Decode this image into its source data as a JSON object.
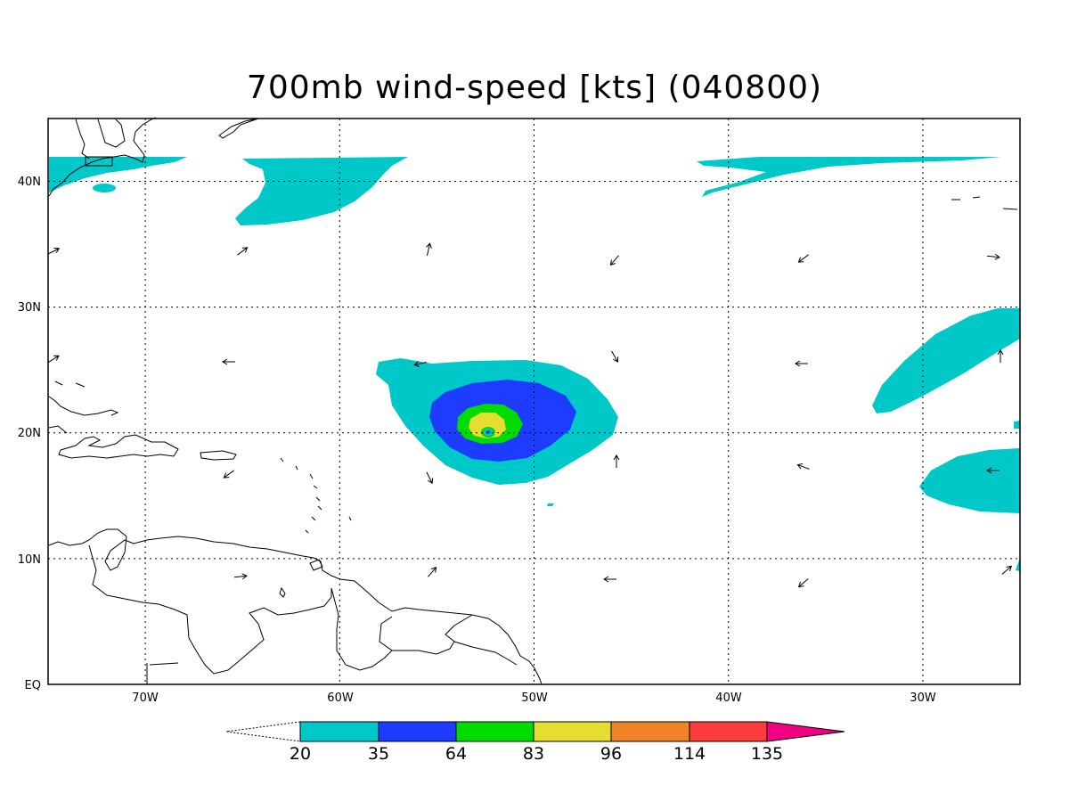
{
  "title": "700mb wind-speed [kts] (040800)",
  "map": {
    "lon_labels": [
      "70W",
      "60W",
      "50W",
      "40W",
      "30W"
    ],
    "lat_labels": [
      "40N",
      "30N",
      "20N",
      "10N",
      "EQ"
    ]
  },
  "colorbar": {
    "levels": [
      "20",
      "35",
      "64",
      "83",
      "96",
      "114",
      "135"
    ],
    "colors": [
      "#00c8c8",
      "#1e3cff",
      "#00dc00",
      "#e6dc32",
      "#f08228",
      "#fa3c3c",
      "#f00082"
    ]
  },
  "chart_data": {
    "type": "heatmap",
    "title": "700mb wind-speed [kts] (040800)",
    "xlim": [
      -75,
      -25
    ],
    "ylim": [
      0,
      45
    ],
    "x_ticks": [
      -70,
      -60,
      -50,
      -40,
      -30
    ],
    "y_ticks": [
      0,
      10,
      20,
      30,
      40
    ],
    "grid": true,
    "contour_levels_kts": [
      20,
      35,
      64,
      83,
      96,
      114,
      135
    ],
    "storm_center": {
      "lon": -52.2,
      "lat": 20.0,
      "max_level_kts": 83
    }
  }
}
